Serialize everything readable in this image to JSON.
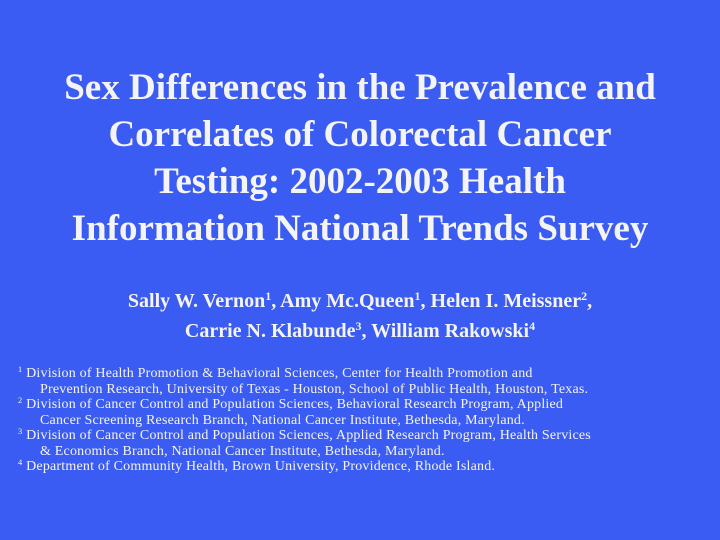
{
  "title_lines": [
    "Sex Differences in the Prevalence and",
    "Correlates of Colorectal Cancer",
    "Testing: 2002-2003 Health",
    "Information National Trends Survey"
  ],
  "author_lines": [
    [
      {
        "name": "Sally W. Vernon",
        "sup": "1",
        "sep": ","
      },
      {
        "name": "Amy Mc.Queen",
        "sup": "1",
        "sep": ","
      },
      {
        "name": "Helen I. Meissner",
        "sup": "2",
        "sep": ","
      }
    ],
    [
      {
        "name": "Carrie N. Klabunde",
        "sup": "3",
        "sep": ","
      },
      {
        "name": "William Rakowski",
        "sup": "4"
      }
    ]
  ],
  "affiliations": [
    {
      "num": "1",
      "lines": [
        "Division of Health Promotion & Behavioral Sciences, Center for Health Promotion and",
        "Prevention Research, University of Texas - Houston, School of Public Health, Houston, Texas."
      ]
    },
    {
      "num": "2",
      "lines": [
        "Division of Cancer Control and Population Sciences, Behavioral Research Program, Applied",
        "Cancer Screening Research Branch, National Cancer Institute, Bethesda, Maryland."
      ]
    },
    {
      "num": "3",
      "lines": [
        "Division of Cancer Control and Population Sciences, Applied Research Program, Health Services",
        "& Economics Branch, National Cancer Institute, Bethesda, Maryland."
      ]
    },
    {
      "num": "4",
      "lines": [
        "Department of Community Health, Brown University, Providence, Rhode Island."
      ]
    }
  ]
}
